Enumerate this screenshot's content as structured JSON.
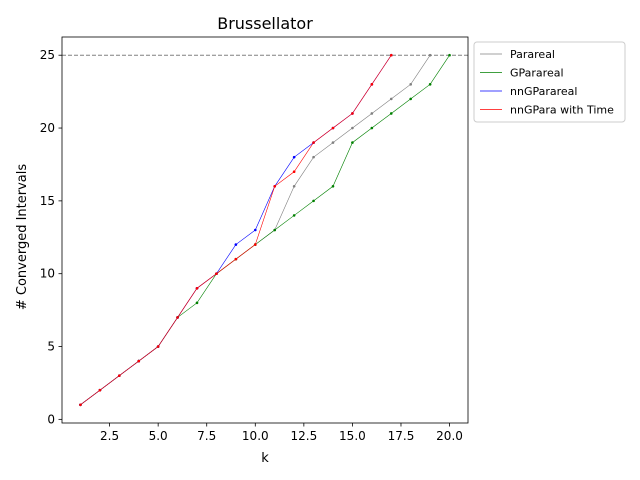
{
  "chart_data": {
    "type": "line",
    "title": "Brussellator",
    "xlabel": "k",
    "ylabel": "# Converged Intervals",
    "xlim": [
      0.05,
      20.95
    ],
    "ylim": [
      -0.25,
      26.25
    ],
    "xticks": [
      2.5,
      5.0,
      7.5,
      10.0,
      12.5,
      15.0,
      17.5,
      20.0
    ],
    "xtick_labels": [
      "2.5",
      "5.0",
      "7.5",
      "10.0",
      "12.5",
      "15.0",
      "17.5",
      "20.0"
    ],
    "yticks": [
      0,
      5,
      10,
      15,
      20,
      25
    ],
    "ytick_labels": [
      "0",
      "5",
      "10",
      "15",
      "20",
      "25"
    ],
    "grid": false,
    "legend_position": "outside-upper-right",
    "reference_line": {
      "y": 25,
      "style": "dashed",
      "color": "#808080"
    },
    "series": [
      {
        "name": "Parareal",
        "color": "#808080",
        "x": [
          1,
          2,
          3,
          4,
          5,
          6,
          7,
          8,
          9,
          10,
          11,
          12,
          13,
          14,
          15,
          16,
          17,
          18,
          19
        ],
        "y": [
          1,
          2,
          3,
          4,
          5,
          7,
          9,
          10,
          11,
          12,
          13,
          16,
          18,
          19,
          20,
          21,
          22,
          23,
          25
        ]
      },
      {
        "name": "GParareal",
        "color": "#008000",
        "x": [
          1,
          2,
          3,
          4,
          5,
          6,
          7,
          8,
          9,
          10,
          11,
          12,
          13,
          14,
          15,
          16,
          17,
          18,
          19,
          20
        ],
        "y": [
          1,
          2,
          3,
          4,
          5,
          7,
          8,
          10,
          11,
          12,
          13,
          14,
          15,
          16,
          19,
          20,
          21,
          22,
          23,
          25
        ]
      },
      {
        "name": "nnGParareal",
        "color": "#0000ff",
        "x": [
          1,
          2,
          3,
          4,
          5,
          6,
          7,
          8,
          9,
          10,
          11,
          12,
          13,
          14,
          15,
          16,
          17
        ],
        "y": [
          1,
          2,
          3,
          4,
          5,
          7,
          9,
          10,
          12,
          13,
          16,
          18,
          19,
          20,
          21,
          23,
          25
        ]
      },
      {
        "name": "nnGPara with Time",
        "color": "#ff0000",
        "x": [
          1,
          2,
          3,
          4,
          5,
          6,
          7,
          8,
          9,
          10,
          11,
          12,
          13,
          14,
          15,
          16,
          17
        ],
        "y": [
          1,
          2,
          3,
          4,
          5,
          7,
          9,
          10,
          11,
          12,
          16,
          17,
          19,
          20,
          21,
          23,
          25
        ]
      }
    ]
  }
}
